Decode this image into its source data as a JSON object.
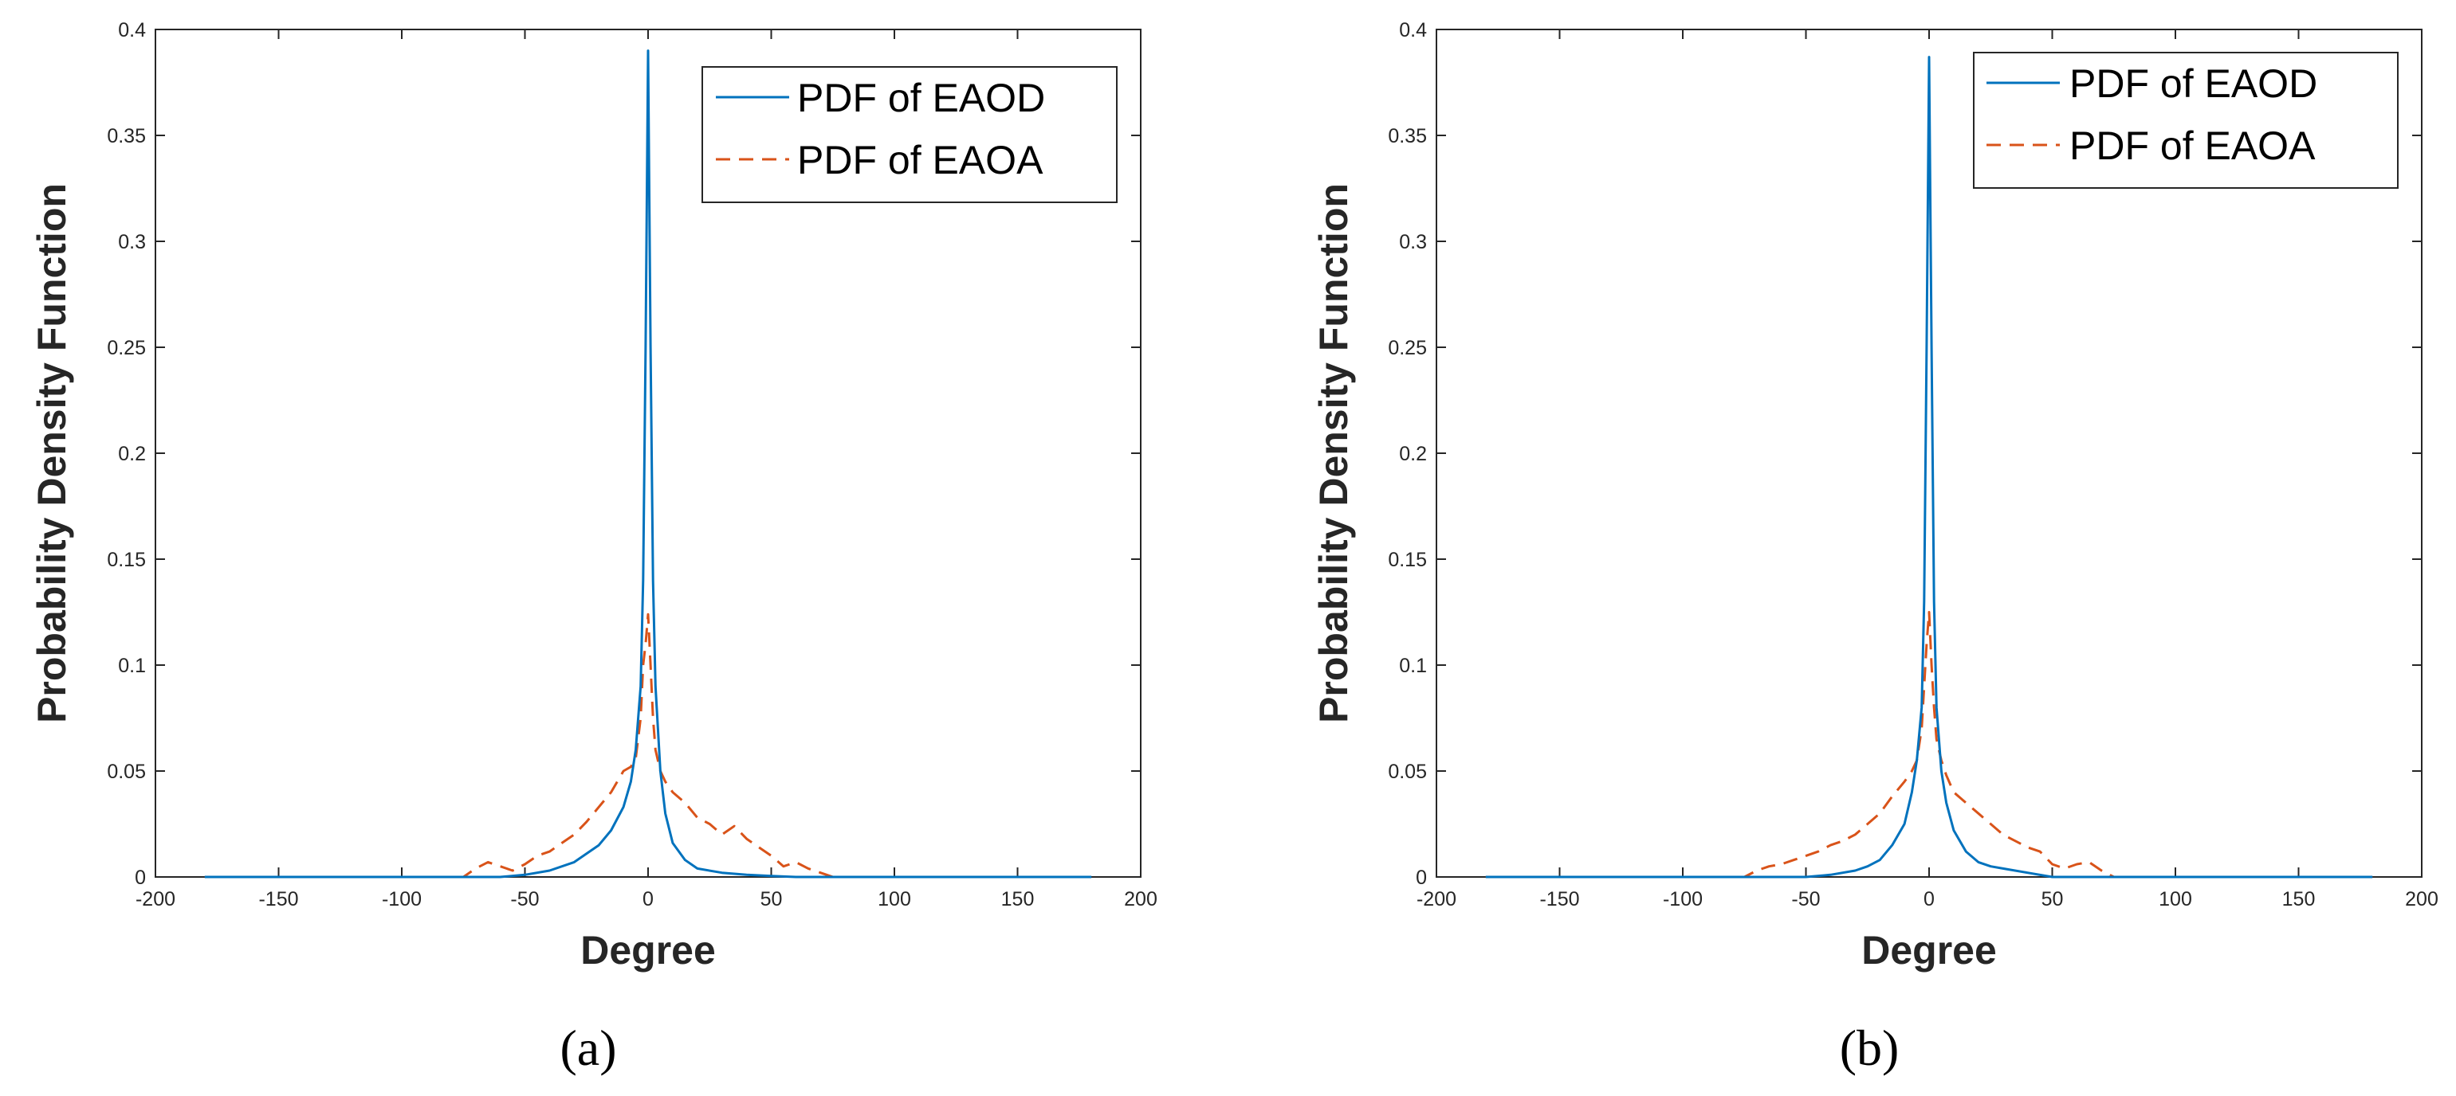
{
  "chart_data": [
    {
      "type": "line",
      "panel_label": "(a)",
      "xlabel": "Degree",
      "ylabel": "Probability Density Function",
      "xlim": [
        -200,
        200
      ],
      "ylim": [
        0,
        0.4
      ],
      "xticks": [
        "-200",
        "-150",
        "-100",
        "-50",
        "0",
        "50",
        "100",
        "150",
        "200"
      ],
      "yticks": [
        "0",
        "0.05",
        "0.1",
        "0.15",
        "0.2",
        "0.25",
        "0.3",
        "0.35",
        "0.4"
      ],
      "grid": false,
      "legend_position": "top-right",
      "series": [
        {
          "name": "PDF of EAOD",
          "style": "solid",
          "color": "#0072BD",
          "x": [
            -180,
            -60,
            -50,
            -40,
            -30,
            -20,
            -15,
            -10,
            -7,
            -5,
            -3,
            -2,
            -1,
            0,
            1,
            2,
            3,
            5,
            7,
            10,
            15,
            20,
            30,
            40,
            50,
            60,
            180
          ],
          "y": [
            0,
            0,
            0.001,
            0.003,
            0.007,
            0.015,
            0.022,
            0.033,
            0.045,
            0.06,
            0.09,
            0.14,
            0.25,
            0.39,
            0.25,
            0.14,
            0.09,
            0.05,
            0.03,
            0.016,
            0.008,
            0.004,
            0.002,
            0.001,
            0.0005,
            0,
            0
          ]
        },
        {
          "name": "PDF of EAOA",
          "style": "dashed",
          "color": "#D95319",
          "x": [
            -180,
            -75,
            -70,
            -65,
            -60,
            -55,
            -50,
            -45,
            -40,
            -35,
            -30,
            -25,
            -20,
            -15,
            -10,
            -7,
            -5,
            -3,
            -2,
            -1,
            0,
            1,
            2,
            3,
            5,
            7,
            10,
            15,
            20,
            25,
            30,
            35,
            40,
            45,
            50,
            55,
            60,
            65,
            70,
            75,
            180
          ],
          "y": [
            0,
            0,
            0.004,
            0.007,
            0.005,
            0.003,
            0.006,
            0.01,
            0.012,
            0.016,
            0.02,
            0.026,
            0.033,
            0.04,
            0.05,
            0.052,
            0.056,
            0.075,
            0.1,
            0.11,
            0.124,
            0.1,
            0.075,
            0.06,
            0.05,
            0.045,
            0.04,
            0.035,
            0.028,
            0.025,
            0.02,
            0.024,
            0.018,
            0.014,
            0.01,
            0.005,
            0.007,
            0.004,
            0.002,
            0,
            0
          ]
        }
      ]
    },
    {
      "type": "line",
      "panel_label": "(b)",
      "xlabel": "Degree",
      "ylabel": "Probability Density Function",
      "xlim": [
        -200,
        200
      ],
      "ylim": [
        0,
        0.4
      ],
      "xticks": [
        "-200",
        "-150",
        "-100",
        "-50",
        "0",
        "50",
        "100",
        "150",
        "200"
      ],
      "yticks": [
        "0",
        "0.05",
        "0.1",
        "0.15",
        "0.2",
        "0.25",
        "0.3",
        "0.35",
        "0.4"
      ],
      "grid": false,
      "legend_position": "top-right",
      "series": [
        {
          "name": "PDF of EAOD",
          "style": "solid",
          "color": "#0072BD",
          "x": [
            -180,
            -50,
            -40,
            -30,
            -25,
            -20,
            -15,
            -10,
            -7,
            -5,
            -3,
            -2,
            -1,
            0,
            1,
            2,
            3,
            5,
            7,
            10,
            15,
            20,
            25,
            30,
            40,
            50,
            180
          ],
          "y": [
            0,
            0,
            0.001,
            0.003,
            0.005,
            0.008,
            0.015,
            0.025,
            0.04,
            0.055,
            0.08,
            0.13,
            0.25,
            0.387,
            0.25,
            0.13,
            0.08,
            0.05,
            0.035,
            0.022,
            0.012,
            0.007,
            0.005,
            0.004,
            0.002,
            0,
            0
          ]
        },
        {
          "name": "PDF of EAOA",
          "style": "dashed",
          "color": "#D95319",
          "x": [
            -180,
            -75,
            -70,
            -65,
            -60,
            -55,
            -50,
            -45,
            -40,
            -35,
            -30,
            -25,
            -20,
            -15,
            -10,
            -7,
            -5,
            -3,
            -2,
            -1,
            0,
            1,
            2,
            3,
            5,
            7,
            10,
            15,
            20,
            25,
            30,
            35,
            40,
            45,
            50,
            55,
            60,
            65,
            70,
            75,
            180
          ],
          "y": [
            0,
            0,
            0.003,
            0.005,
            0.006,
            0.008,
            0.01,
            0.012,
            0.015,
            0.017,
            0.02,
            0.025,
            0.03,
            0.038,
            0.045,
            0.05,
            0.055,
            0.07,
            0.09,
            0.11,
            0.125,
            0.1,
            0.08,
            0.065,
            0.055,
            0.048,
            0.04,
            0.035,
            0.03,
            0.025,
            0.02,
            0.017,
            0.014,
            0.012,
            0.006,
            0.004,
            0.006,
            0.007,
            0.003,
            0,
            0
          ]
        }
      ]
    }
  ]
}
